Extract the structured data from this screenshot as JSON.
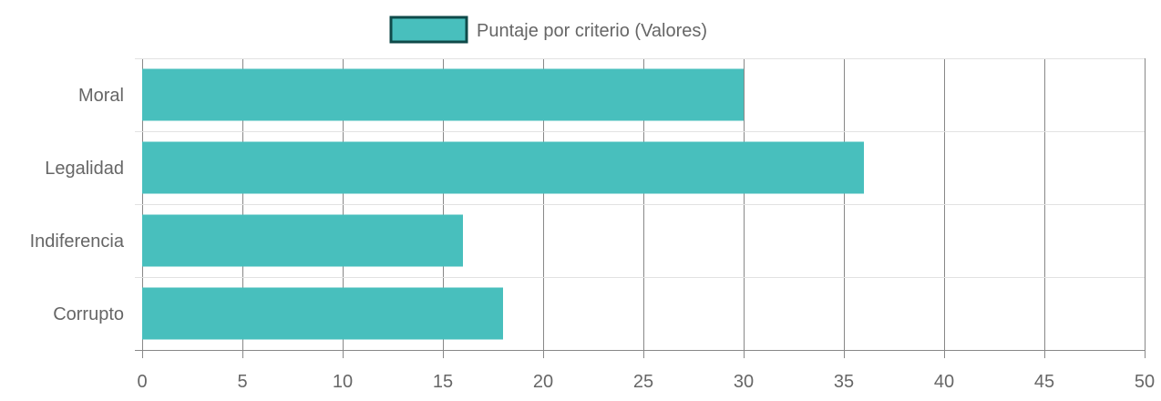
{
  "chart_data": {
    "type": "bar",
    "orientation": "horizontal",
    "categories": [
      "Moral",
      "Legalidad",
      "Indiferencia",
      "Corrupto"
    ],
    "series": [
      {
        "name": "Puntaje por criterio (Valores)",
        "values": [
          30,
          36,
          16,
          18
        ]
      }
    ],
    "xlim": [
      0,
      50
    ],
    "x_ticks": [
      "0",
      "5",
      "10",
      "15",
      "20",
      "25",
      "30",
      "35",
      "40",
      "45",
      "50"
    ],
    "grid": true,
    "legend_position": "top-center",
    "colors": {
      "bar_fill": "#48bfbd",
      "bar_stroke": "#0f4a49",
      "grid": "#cccccc",
      "grid_strong": "#888888",
      "text": "#666666"
    }
  }
}
